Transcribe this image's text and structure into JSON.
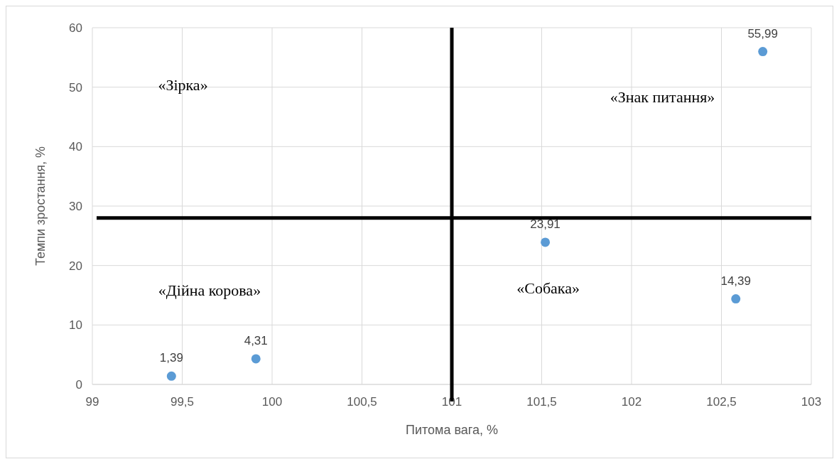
{
  "chart_data": {
    "type": "scatter",
    "xlabel": "Питома вага, %",
    "ylabel": "Темпи зростання, %",
    "xlim": [
      99,
      103
    ],
    "xticks": [
      {
        "value": 99,
        "label": "99"
      },
      {
        "value": 99.5,
        "label": "99,5"
      },
      {
        "value": 100,
        "label": "100"
      },
      {
        "value": 100.5,
        "label": "100,5"
      },
      {
        "value": 101,
        "label": "101"
      },
      {
        "value": 101.5,
        "label": "101,5"
      },
      {
        "value": 102,
        "label": "102"
      },
      {
        "value": 102.5,
        "label": "102,5"
      },
      {
        "value": 103,
        "label": "103"
      }
    ],
    "ylim": [
      0,
      60
    ],
    "yticks": [
      0,
      10,
      20,
      30,
      40,
      50,
      60
    ],
    "grid": true,
    "marker": "circle",
    "series": [
      {
        "color": "#5b9bd5",
        "x": [
          99.44,
          99.91,
          101.52,
          102.58,
          102.73
        ],
        "values": [
          1.39,
          4.31,
          23.91,
          14.39,
          55.99
        ],
        "value_labels": [
          "1,39",
          "4,31",
          "23,91",
          "14,39",
          "55,99"
        ]
      }
    ],
    "ref_lines": [
      {
        "axis": "x",
        "value": 101,
        "color": "#000000"
      },
      {
        "axis": "y",
        "value": 28,
        "color": "#000000"
      }
    ],
    "annotations": [
      "«Зірка»",
      "«Знак питання»",
      "«Дійна корова»",
      "«Собака»"
    ]
  }
}
